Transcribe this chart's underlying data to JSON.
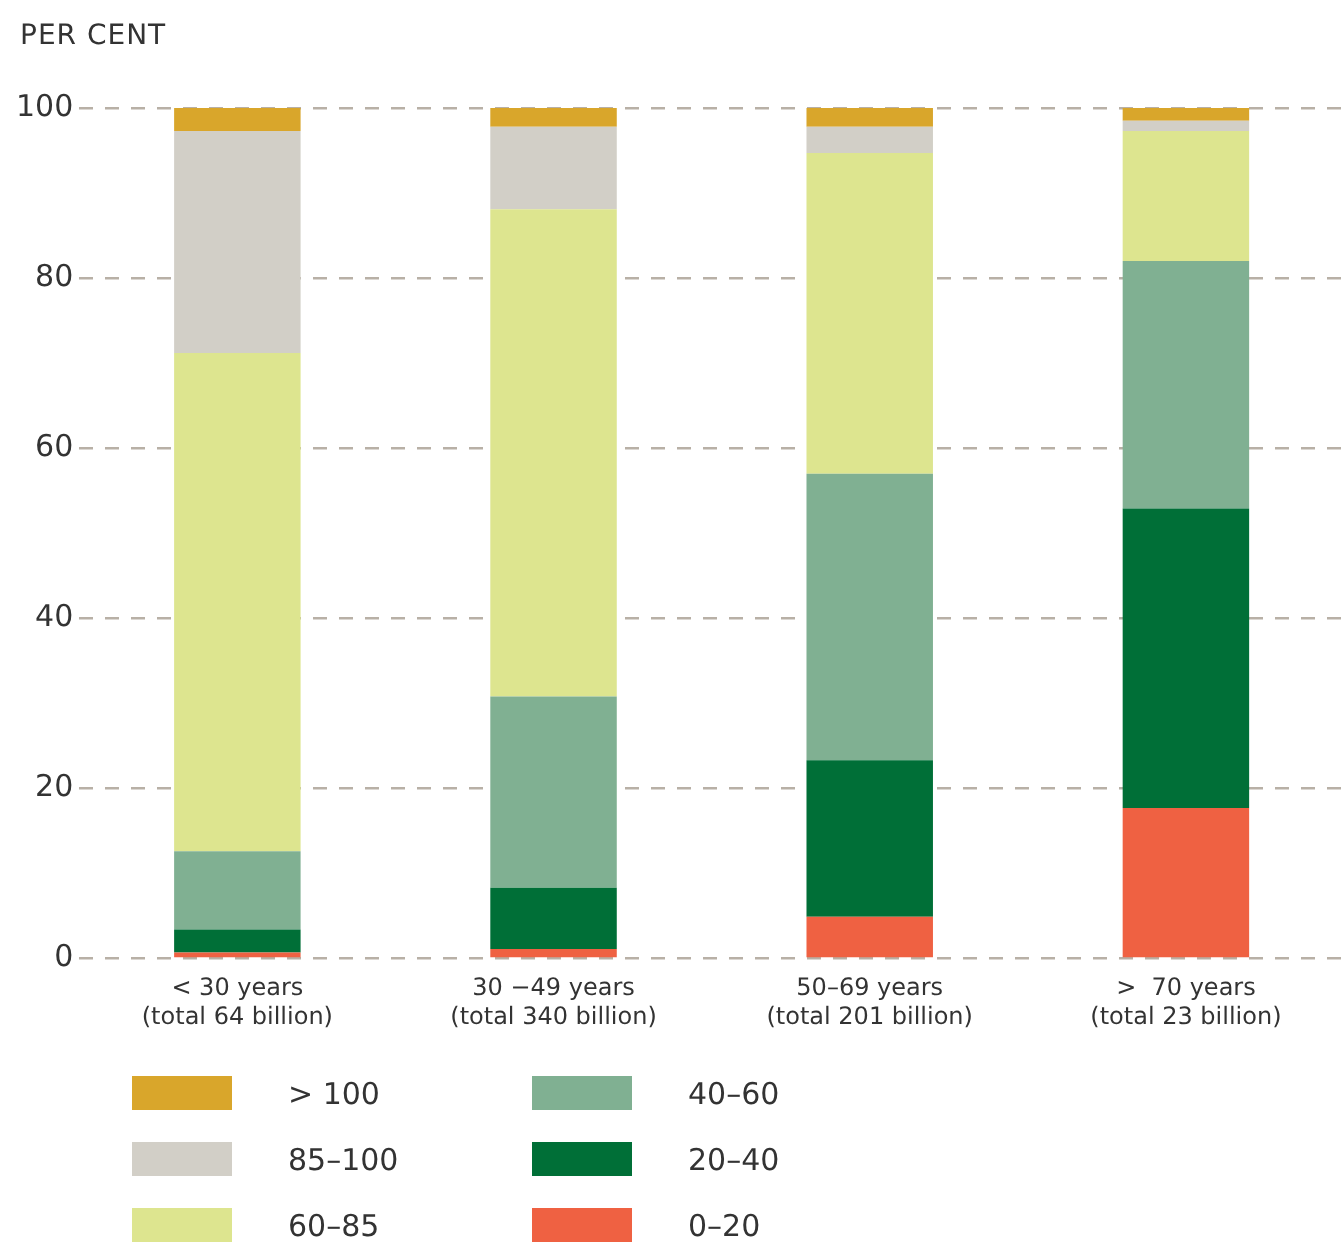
{
  "chart_data": {
    "type": "bar",
    "stacked": true,
    "ylabel": "PER CENT",
    "categories": [
      "< 30 years\n(total 64 billion)",
      "30 −49 years\n(total 340 billion)",
      "50–69 years\n(total 201 billion)",
      ">  70 years\n(total 23 billion)"
    ],
    "series": [
      {
        "name": "0–20",
        "color": "#ef6142",
        "values": [
          0.7,
          1.1,
          4.9,
          17.7
        ]
      },
      {
        "name": "20–40",
        "color": "#006f37",
        "values": [
          2.7,
          7.2,
          18.4,
          35.2
        ]
      },
      {
        "name": "40–60",
        "color": "#80b092",
        "values": [
          9.2,
          22.5,
          33.7,
          29.1
        ]
      },
      {
        "name": "60–85",
        "color": "#dde58f",
        "values": [
          58.6,
          57.3,
          37.7,
          15.3
        ]
      },
      {
        "name": "85–100",
        "color": "#d2cfc7",
        "values": [
          26.1,
          9.7,
          3.1,
          1.2
        ]
      },
      {
        "name": "> 100",
        "color": "#d9a62b",
        "values": [
          2.7,
          2.2,
          2.2,
          1.5
        ]
      }
    ],
    "ylim": [
      0,
      100
    ],
    "yticks": [
      0,
      20,
      40,
      60,
      80,
      100
    ],
    "grid": "y",
    "legend": "bottom"
  }
}
